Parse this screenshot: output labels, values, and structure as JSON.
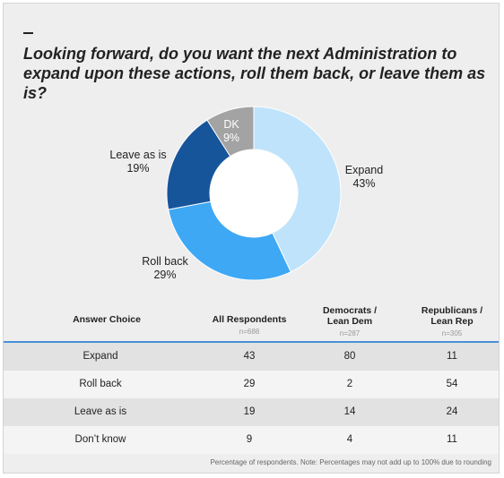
{
  "title": "Looking forward, do you want the next Administration to expand upon these actions, roll them back, or leave them as is?",
  "chart_data": {
    "type": "pie",
    "donut": true,
    "categories": [
      "Expand",
      "Roll back",
      "Leave as is",
      "DK"
    ],
    "values": [
      43,
      29,
      19,
      9
    ],
    "labels": [
      "43%",
      "29%",
      "19%",
      "9%"
    ],
    "colors": [
      "#bfe3fb",
      "#3ea8f5",
      "#17559b",
      "#a3a3a3"
    ]
  },
  "table": {
    "headers": {
      "answer": "Answer Choice",
      "all": "All Respondents",
      "all_n": "n=688",
      "dem": "Democrats / Lean Dem",
      "dem_n": "n=287",
      "rep": "Republicans / Lean Rep",
      "rep_n": "n=305"
    },
    "rows": [
      {
        "choice": "Expand",
        "all": "43",
        "dem": "80",
        "rep": "11"
      },
      {
        "choice": "Roll back",
        "all": "29",
        "dem": "2",
        "rep": "54"
      },
      {
        "choice": "Leave as is",
        "all": "19",
        "dem": "14",
        "rep": "24"
      },
      {
        "choice": "Don’t know",
        "all": "9",
        "dem": "4",
        "rep": "11"
      }
    ]
  },
  "footnote": "Percentage of respondents. Note: Percentages may not add up to 100% due to rounding"
}
